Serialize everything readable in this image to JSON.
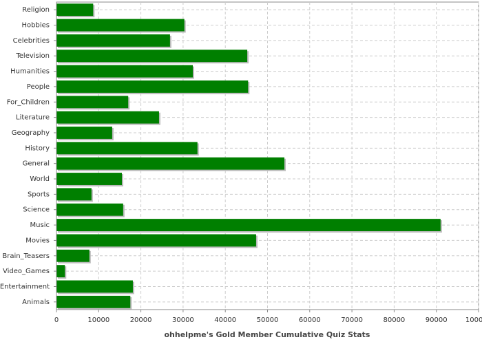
{
  "chart_data": {
    "type": "barh",
    "x_label": "ohhelpme's Gold Member Cumulative Quiz Stats",
    "categories": [
      "Religion",
      "Hobbies",
      "Celebrities",
      "Television",
      "Humanities",
      "People",
      "For_Children",
      "Literature",
      "Geography",
      "History",
      "General",
      "World",
      "Sports",
      "Science",
      "Music",
      "Movies",
      "Brain_Teasers",
      "Video_Games",
      "Entertainment",
      "Animals"
    ],
    "values": [
      8700,
      30300,
      26900,
      45200,
      32300,
      45400,
      17000,
      24300,
      13200,
      33400,
      54000,
      15500,
      8300,
      15800,
      91000,
      47300,
      7800,
      2000,
      18100,
      17500
    ],
    "color": "#007f00",
    "xlim": [
      0,
      100000
    ],
    "xticks": [
      0,
      10000,
      20000,
      30000,
      40000,
      50000,
      60000,
      70000,
      80000,
      90000,
      100000
    ],
    "grid": true
  }
}
